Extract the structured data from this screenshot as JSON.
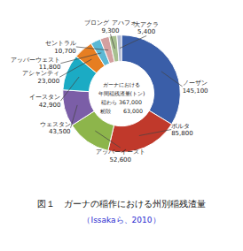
{
  "chart_data": {
    "type": "pie",
    "title": "図１　ガーナの稲作における州別稲残渣量",
    "subtitle": "（Issakaら、2010）",
    "categories": [
      "ノーザン",
      "ボルタ",
      "アッパーイースト",
      "ウェスタン",
      "イースタン",
      "アシャンティ",
      "アッパーウェスト",
      "セントラル",
      "ブロング アハフォ",
      "大アクラ"
    ],
    "values": [
      145100,
      85800,
      52600,
      43500,
      42900,
      23000,
      11800,
      10700,
      9300,
      5400
    ],
    "value_labels": [
      "145,100",
      "85,800",
      "52,600",
      "43,500",
      "42,900",
      "23,000",
      "11,800",
      "10,700",
      "9,300",
      "5,400"
    ],
    "colors": [
      "#3a5ea8",
      "#c0392b",
      "#8db54b",
      "#7b5ea7",
      "#1babc4",
      "#e67e22",
      "#5bb8d4",
      "#d4a0a0",
      "#a8c090",
      "#b0b8d0"
    ],
    "data_labels": true,
    "annotations": [
      "ガーナにおける",
      "年間稲残渣量(トン)",
      "稲わら   367,000",
      "籾殻　　  63,000"
    ]
  }
}
